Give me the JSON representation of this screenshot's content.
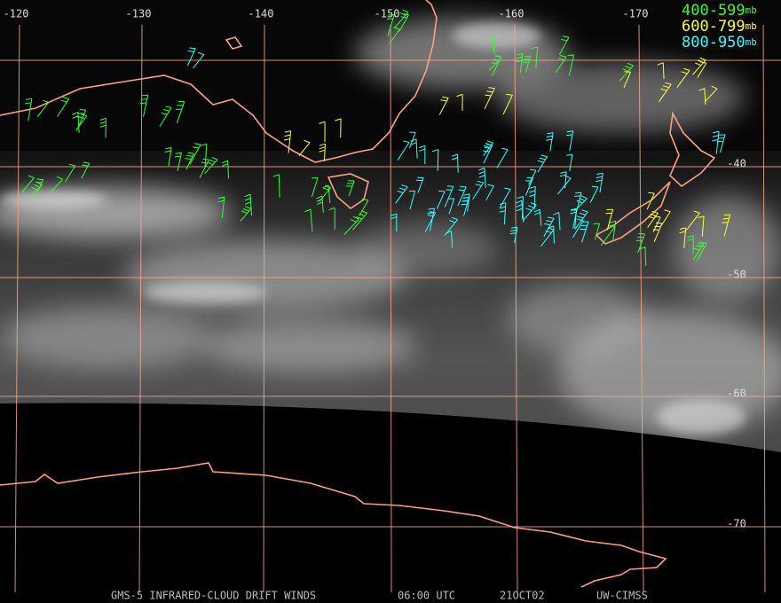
{
  "map": {
    "lon_labels": [
      -120,
      -130,
      -140,
      -150,
      -160,
      -170
    ],
    "lat_labels": [
      -40,
      -50,
      -60,
      -70
    ]
  },
  "legend": [
    {
      "range": "400-599",
      "unit": "mb",
      "color": "#33ff33"
    },
    {
      "range": "600-799",
      "unit": "mb",
      "color": "#ffff33"
    },
    {
      "range": "800-950",
      "unit": "mb",
      "color": "#33ffff"
    }
  ],
  "footer": [
    "GMS-5 INFRARED-CLOUD DRIFT WINDS",
    "06:00 UTC",
    "21OCT02",
    "UW-CIMSS"
  ]
}
